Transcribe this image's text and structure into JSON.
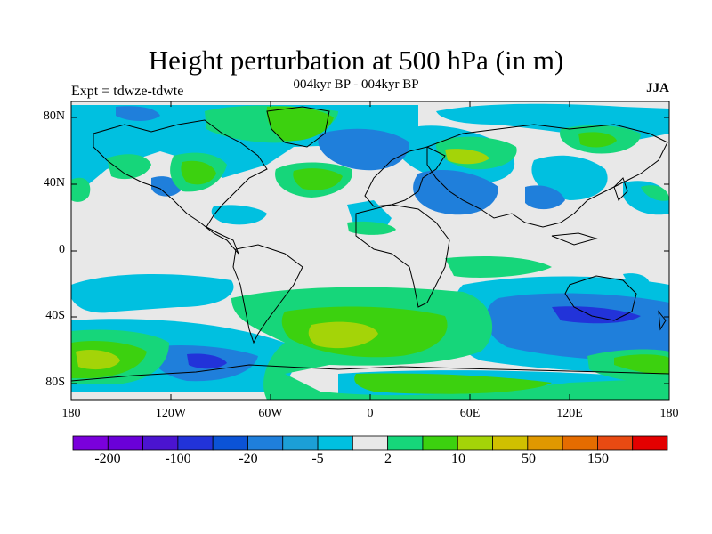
{
  "title": "Height perturbation at 500 hPa (in m)",
  "subtitle": "004kyr BP - 004kyr BP",
  "left_label": "Expt = tdwze-tdwte",
  "right_label": "JJA",
  "lat_labels": [
    "80N",
    "40N",
    "0",
    "40S",
    "80S"
  ],
  "lon_labels": [
    "180",
    "120W",
    "60W",
    "0",
    "60E",
    "120E",
    "180"
  ],
  "colorbar": {
    "colors": [
      "#7a00db",
      "#6a00d8",
      "#4b14d0",
      "#2233d9",
      "#0b53d6",
      "#1f7fdb",
      "#1c9fd6",
      "#00c0e0",
      "#e8e8e8",
      "#16d67a",
      "#3cd10f",
      "#a4d408",
      "#d0c000",
      "#e09800",
      "#e56c00",
      "#e84a12",
      "#e30000"
    ],
    "labels": [
      "-200",
      "-100",
      "-20",
      "-5",
      "2",
      "10",
      "50",
      "150"
    ]
  },
  "map_colors": {
    "ocean_background": "#e8e8e8",
    "coastline": "#000000"
  }
}
